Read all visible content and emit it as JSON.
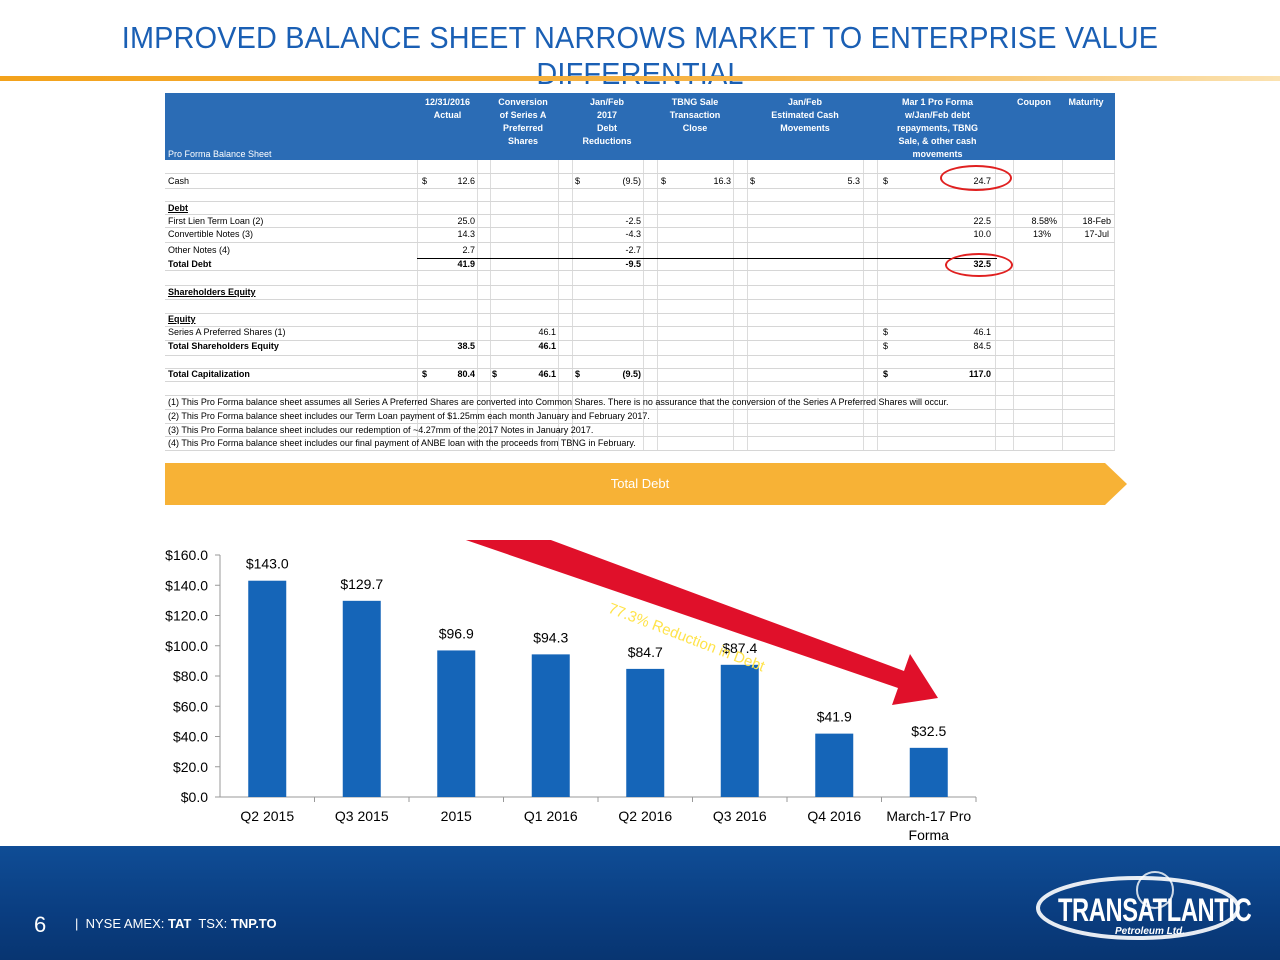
{
  "title": "IMPROVED BALANCE SHEET NARROWS MARKET TO ENTERPRISE VALUE DIFFERENTIAL",
  "table": {
    "row_title": "Pro Forma Balance Sheet",
    "headers": [
      "12/31/2016\nActual",
      "Conversion\nof Series A\nPreferred\nShares",
      "Jan/Feb\n2017\nDebt\nReductions",
      "TBNG Sale\nTransaction\nClose",
      "Jan/Feb\nEstimated Cash\nMovements",
      "Mar 1 Pro Forma\nw/Jan/Feb debt\nrepayments, TBNG\nSale, & other cash\nmovements",
      "Coupon",
      "Maturity"
    ],
    "cash": {
      "label": "Cash",
      "dollar": "$",
      "actual": "12.6",
      "debt_red": "(9.5)",
      "tbng": "16.3",
      "est_cash": "5.3",
      "pro_forma": "24.7"
    },
    "debt_header": "Debt",
    "first_lien": {
      "label": "First Lien Term Loan (2)",
      "actual": "25.0",
      "debt_red": "-2.5",
      "pro_forma": "22.5",
      "coupon": "8.58%",
      "maturity": "18-Feb"
    },
    "convertible": {
      "label": "Convertible Notes (3)",
      "actual": "14.3",
      "debt_red": "-4.3",
      "pro_forma": "10.0",
      "coupon": "13%",
      "maturity": "17-Jul"
    },
    "other_notes": {
      "label": "Other Notes (4)",
      "actual": "2.7",
      "debt_red": "-2.7"
    },
    "total_debt": {
      "label": "Total Debt",
      "actual": "41.9",
      "debt_red": "-9.5",
      "pro_forma": "32.5"
    },
    "sh_equity_header": "Shareholders Equity",
    "equity_header": "Equity",
    "series_a": {
      "label": "Series A Preferred Shares (1)",
      "conversion": "46.1",
      "pro_forma": "46.1"
    },
    "total_sh_equity": {
      "label": "Total Shareholders Equity",
      "actual": "38.5",
      "conversion": "46.1",
      "pro_forma": "84.5"
    },
    "total_cap": {
      "label": "Total Capitalization",
      "actual": "80.4",
      "conversion": "46.1",
      "debt_red": "(9.5)",
      "pro_forma": "117.0"
    },
    "notes": [
      "(1) This Pro Forma balance sheet assumes all Series A Preferred Shares are converted into Common Shares. There is no assurance that the conversion of the Series A Preferred Shares will occur.",
      "(2) This Pro Forma balance sheet includes our Term Loan payment of $1.25mm each month January and February 2017.",
      "(3) This Pro Forma balance sheet includes our redemption of ~4.27mm of the 2017 Notes in January 2017.",
      "(4) This Pro Forma balance sheet includes our final payment of ANBE loan with the proceeds from TBNG in February."
    ]
  },
  "banner": "Total Debt",
  "annotation": "77.3% Reduction in Debt",
  "chart_data": {
    "type": "bar",
    "categories": [
      "Q2 2015",
      "Q3 2015",
      "2015",
      "Q1 2016",
      "Q2 2016",
      "Q3 2016",
      "Q4 2016",
      "March-17 Pro Forma"
    ],
    "values": [
      143.0,
      129.7,
      96.9,
      94.3,
      84.7,
      87.4,
      41.9,
      32.5
    ],
    "data_labels": [
      "$143.0",
      "$129.7",
      "$96.9",
      "$94.3",
      "$84.7",
      "$87.4",
      "$41.9",
      "$32.5"
    ],
    "yticks": [
      "$0.0",
      "$20.0",
      "$40.0",
      "$60.0",
      "$80.0",
      "$100.0",
      "$120.0",
      "$140.0",
      "$160.0"
    ],
    "ylim": [
      0,
      160
    ],
    "bar_color": "#1565b8",
    "title": "",
    "xlabel": "",
    "ylabel": ""
  },
  "footer": {
    "page": "6",
    "sep": "|",
    "exchange1": "NYSE AMEX:",
    "ticker1": "TAT",
    "exchange2": "TSX:",
    "ticker2": "TNP.TO",
    "logo_main": "TRANSATLANTIC",
    "logo_sub": "Petroleum Ltd."
  },
  "colors": {
    "title": "#1a5fb4",
    "accent": "#f7b236",
    "header": "#2b6cb5",
    "footer": "#0a3d80",
    "arrow": "#e0102a"
  }
}
